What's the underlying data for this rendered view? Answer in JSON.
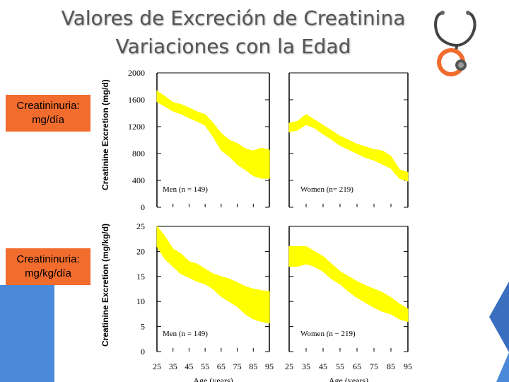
{
  "slide": {
    "title_line1": "Valores de Excreción de Creatinina",
    "title_line2": "Variaciones con la Edad",
    "label_top": "Creatininuria: mg/día",
    "label_bottom": "Creatininuria: mg/kg/día"
  },
  "colors": {
    "band": "#ffff00",
    "label_bg": "#f26c2e",
    "accent_blue": "#4a8ad8",
    "title": "#555555"
  },
  "icons": [
    "stethoscope-icon"
  ],
  "chart_data": [
    {
      "type": "area",
      "title": "",
      "ylabel": "Creatinine Excretion (mg/d)",
      "ylim": [
        0,
        2000
      ],
      "yticks": [
        0,
        400,
        800,
        1200,
        1600,
        2000
      ],
      "panels": [
        {
          "legend": "Men (n = 149)",
          "x": [
            25,
            30,
            35,
            40,
            45,
            50,
            55,
            60,
            65,
            70,
            75,
            80,
            85,
            90,
            95
          ],
          "upper": [
            1730,
            1650,
            1560,
            1530,
            1480,
            1420,
            1380,
            1250,
            1100,
            1000,
            950,
            870,
            840,
            880,
            850
          ],
          "lower": [
            1570,
            1500,
            1430,
            1390,
            1330,
            1280,
            1220,
            1050,
            850,
            760,
            640,
            560,
            470,
            430,
            430
          ]
        },
        {
          "legend": "Women (n= 219)",
          "x": [
            25,
            30,
            35,
            40,
            45,
            50,
            55,
            60,
            65,
            70,
            75,
            80,
            85,
            90,
            95
          ],
          "upper": [
            1250,
            1280,
            1380,
            1300,
            1220,
            1140,
            1060,
            1000,
            940,
            900,
            860,
            840,
            760,
            560,
            520
          ],
          "lower": [
            1120,
            1150,
            1230,
            1180,
            1090,
            1010,
            920,
            860,
            800,
            740,
            700,
            640,
            580,
            430,
            390
          ]
        }
      ]
    },
    {
      "type": "area",
      "title": "",
      "ylabel": "Creatinine Excretion (mg/kg/d)",
      "xlabel": "Age (years)",
      "ylim": [
        0,
        25
      ],
      "yticks": [
        0,
        5,
        10,
        15,
        20,
        25
      ],
      "xticks": [
        25,
        35,
        45,
        55,
        65,
        75,
        85,
        95
      ],
      "panels": [
        {
          "legend": "Men (n = 149)",
          "x": [
            25,
            30,
            35,
            40,
            45,
            50,
            55,
            60,
            65,
            70,
            75,
            80,
            85,
            90,
            95
          ],
          "upper": [
            25,
            23,
            20.5,
            19.5,
            18,
            17.5,
            16.5,
            15.5,
            15,
            14.5,
            13.8,
            13,
            12.5,
            12.2,
            12
          ],
          "lower": [
            21,
            18.5,
            17,
            15.5,
            14.8,
            14,
            13.5,
            12.5,
            11,
            10,
            9,
            7.5,
            6.5,
            6,
            5.7
          ]
        },
        {
          "legend": "Women (n − 219)",
          "x": [
            25,
            30,
            35,
            40,
            45,
            50,
            55,
            60,
            65,
            70,
            75,
            80,
            85,
            90,
            95
          ],
          "upper": [
            21,
            21,
            21,
            20,
            19,
            17.5,
            16,
            15,
            14,
            13.2,
            12.5,
            11.8,
            10.8,
            9.5,
            8.5
          ],
          "lower": [
            17,
            17,
            17.5,
            17,
            16,
            14.5,
            13.5,
            12,
            10.8,
            9.8,
            8.8,
            8,
            7.5,
            6.5,
            6
          ]
        }
      ]
    }
  ]
}
